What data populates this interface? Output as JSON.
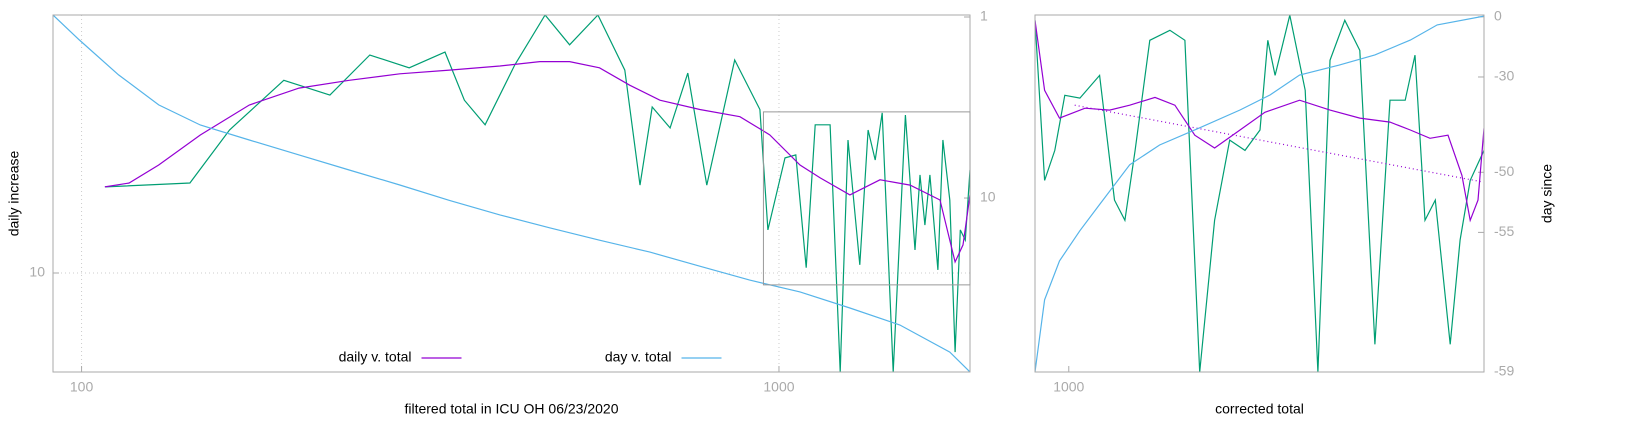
{
  "chart_data": [
    {
      "type": "line",
      "xlabel": "filtered total in ICU OH 06/23/2020",
      "ylabel": "daily increase",
      "xlim": [
        91,
        1879
      ],
      "ylim": [
        2.84,
        266
      ],
      "y2lim": [
        0.975,
        91.4
      ],
      "xticks": [
        100,
        1000
      ],
      "yticks": [
        10
      ],
      "y2ticks": [
        1,
        10
      ],
      "xlog": true,
      "ylog": true,
      "y2log": true,
      "y2reverse": true,
      "grid": true,
      "legend": "bottom center",
      "series": [
        {
          "color": "#009e73",
          "x": [
            108,
            143,
            163,
            195,
            227,
            259,
            295,
            332,
            354,
            379,
            418,
            462,
            501,
            550,
            601,
            632,
            658,
            698,
            740,
            788,
            864,
            939,
            964,
            1020,
            1057,
            1094,
            1127,
            1184,
            1224,
            1256,
            1306,
            1342,
            1374,
            1406,
            1458,
            1518,
            1567,
            1593,
            1619,
            1646,
            1690,
            1718,
            1758,
            1789,
            1820,
            1850,
            1879
          ],
          "values": [
            29.9,
            31.4,
            61.6,
            116,
            96,
            160,
            136,
            166,
            90,
            65.8,
            141,
            266,
            182,
            266,
            132,
            30.6,
            82.6,
            63.3,
            127,
            30.6,
            150,
            80,
            17.3,
            43.2,
            44.9,
            10.7,
            65.8,
            65.8,
            2.84,
            54.3,
            11.1,
            61.6,
            42.1,
            76.6,
            2.84,
            74.6,
            13.4,
            34.8,
            18.4,
            34.8,
            10.4,
            54.3,
            25.3,
            3.66,
            17.3,
            15.2,
            37.1
          ]
        },
        {
          "name": "daily v. total",
          "color": "#9400d3",
          "x": [
            108,
            117,
            129,
            148,
            174,
            205,
            242,
            286,
            337,
            398,
            454,
            501,
            553,
            611,
            675,
            770,
            879,
            970,
            1072,
            1146,
            1264,
            1396,
            1542,
            1702,
            1789,
            1836,
            1879
          ],
          "values": [
            29.9,
            31.4,
            39.5,
            57.8,
            84.7,
            105,
            116,
            126,
            132,
            139,
            147,
            147,
            136,
            109,
            90,
            80,
            73,
            58,
            39.5,
            33.5,
            27,
            32.7,
            30.6,
            25.3,
            11.5,
            14.3,
            27
          ]
        },
        {
          "name": "day v. total",
          "color": "#56b4e9",
          "axis": "y2",
          "x": [
            91,
            99.3,
            113,
            129,
            148,
            174,
            205,
            242,
            286,
            337,
            398,
            469,
            553,
            653,
            770,
            908,
            1072,
            1264,
            1491,
            1758,
            1879
          ],
          "values": [
            0.975,
            1.34,
            2.09,
            3.06,
            3.95,
            4.78,
            5.78,
            7.0,
            8.47,
            10.3,
            12.4,
            14.6,
            17.1,
            19.9,
            23.8,
            28.4,
            33.0,
            40.5,
            50.3,
            71.0,
            91.4
          ]
        }
      ]
    },
    {
      "type": "line",
      "xlabel": "corrected total",
      "y2label": "day since",
      "xlim": [
        950,
        1879
      ],
      "ylim": [
        8.6,
        77.6
      ],
      "y2lim": [
        -59,
        1.3
      ],
      "xticks": [
        1000
      ],
      "y2ticks": [
        0,
        -30,
        -50,
        -55,
        -59
      ],
      "xlog": true,
      "ylog": true,
      "y2log": true,
      "y2offset": 60,
      "grid": false,
      "series": [
        {
          "color": "#009e73",
          "x": [
            950,
            964,
            979,
            994,
            1017,
            1048,
            1072,
            1089,
            1106,
            1131,
            1166,
            1193,
            1220,
            1248,
            1277,
            1307,
            1337,
            1353,
            1368,
            1399,
            1432,
            1460,
            1487,
            1521,
            1556,
            1592,
            1629,
            1667,
            1692,
            1718,
            1745,
            1785,
            1812,
            1840,
            1879
          ],
          "values": [
            75.1,
            28.0,
            33.7,
            47.3,
            46.5,
            53.5,
            24.8,
            21.9,
            33.7,
            66.4,
            70.6,
            66.4,
            8.6,
            21.9,
            35.9,
            33.7,
            38.2,
            66.4,
            53.5,
            77.5,
            48.8,
            8.6,
            58.7,
            75.1,
            62.4,
            10.2,
            45.9,
            45.9,
            60.6,
            21.9,
            24.8,
            10.2,
            19.4,
            28.0,
            33.7
          ]
        },
        {
          "color": "#9400d3",
          "x": [
            950,
            964,
            986,
            1025,
            1064,
            1097,
            1140,
            1175,
            1211,
            1248,
            1297,
            1347,
            1420,
            1487,
            1556,
            1629,
            1680,
            1731,
            1779,
            1817,
            1840,
            1862,
            1879
          ],
          "values": [
            75.1,
            48.8,
            41.1,
            43.7,
            43.2,
            44.5,
            46.7,
            44.5,
            37.0,
            34.2,
            38.2,
            42.6,
            45.9,
            43.2,
            41.1,
            40.1,
            38.2,
            36.3,
            37.0,
            28.9,
            21.9,
            24.8,
            38.6
          ]
        },
        {
          "color": "#9400d3",
          "dash": true,
          "x": [
            1009,
            1879
          ],
          "values": [
            44.5,
            27.7
          ]
        },
        {
          "color": "#56b4e9",
          "axis": "y2",
          "x": [
            950,
            964,
            986,
            1017,
            1048,
            1097,
            1148,
            1220,
            1297,
            1358,
            1420,
            1508,
            1592,
            1680,
            1750,
            1879
          ],
          "values": [
            -59,
            -57.7,
            -56.4,
            -54.9,
            -53.1,
            -49.1,
            -46.3,
            -43.3,
            -39.5,
            -35.6,
            -29.3,
            -25.6,
            -21.3,
            -14.1,
            -5.3,
            0.5
          ]
        }
      ]
    }
  ]
}
